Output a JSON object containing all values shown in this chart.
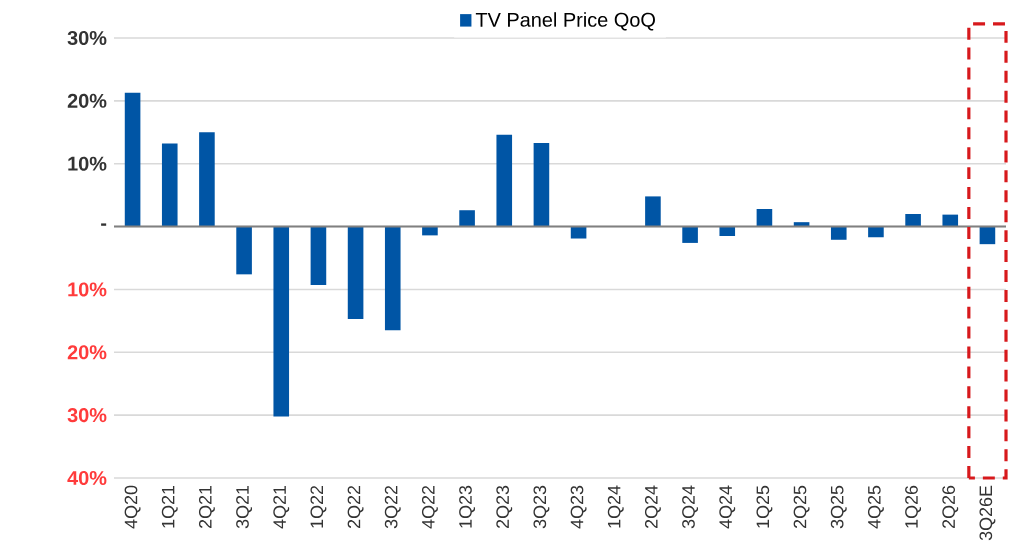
{
  "chart_data": {
    "type": "bar",
    "categories": [
      "4Q20",
      "1Q21",
      "2Q21",
      "3Q21",
      "4Q21",
      "1Q22",
      "2Q22",
      "3Q22",
      "4Q22",
      "1Q23",
      "2Q23",
      "3Q23",
      "4Q23",
      "1Q24",
      "2Q24",
      "3Q24",
      "4Q24",
      "1Q25",
      "2Q25",
      "3Q25",
      "4Q25",
      "1Q26",
      "2Q26",
      "3Q26E"
    ],
    "series": [
      {
        "name": "TV Panel Price QoQ",
        "color": "#0055a5",
        "values": [
          21.3,
          13.2,
          15.0,
          -7.6,
          -30.2,
          -9.3,
          -14.7,
          -16.5,
          -1.4,
          2.6,
          14.6,
          13.3,
          -1.9,
          0,
          4.8,
          -2.6,
          -1.5,
          2.8,
          0.7,
          -2.1,
          -1.7,
          2.0,
          1.9,
          -2.8
        ]
      }
    ],
    "ylim": [
      -40,
      30
    ],
    "yticks": [
      {
        "value": -40,
        "label": "40%"
      },
      {
        "value": -30,
        "label": "30%"
      },
      {
        "value": -20,
        "label": "20%"
      },
      {
        "value": -10,
        "label": "10%"
      },
      {
        "value": 0,
        "label": "-"
      },
      {
        "value": 10,
        "label": "10%"
      },
      {
        "value": 20,
        "label": "20%"
      },
      {
        "value": 30,
        "label": "30%"
      }
    ],
    "grid": "y",
    "legend": "top"
  }
}
